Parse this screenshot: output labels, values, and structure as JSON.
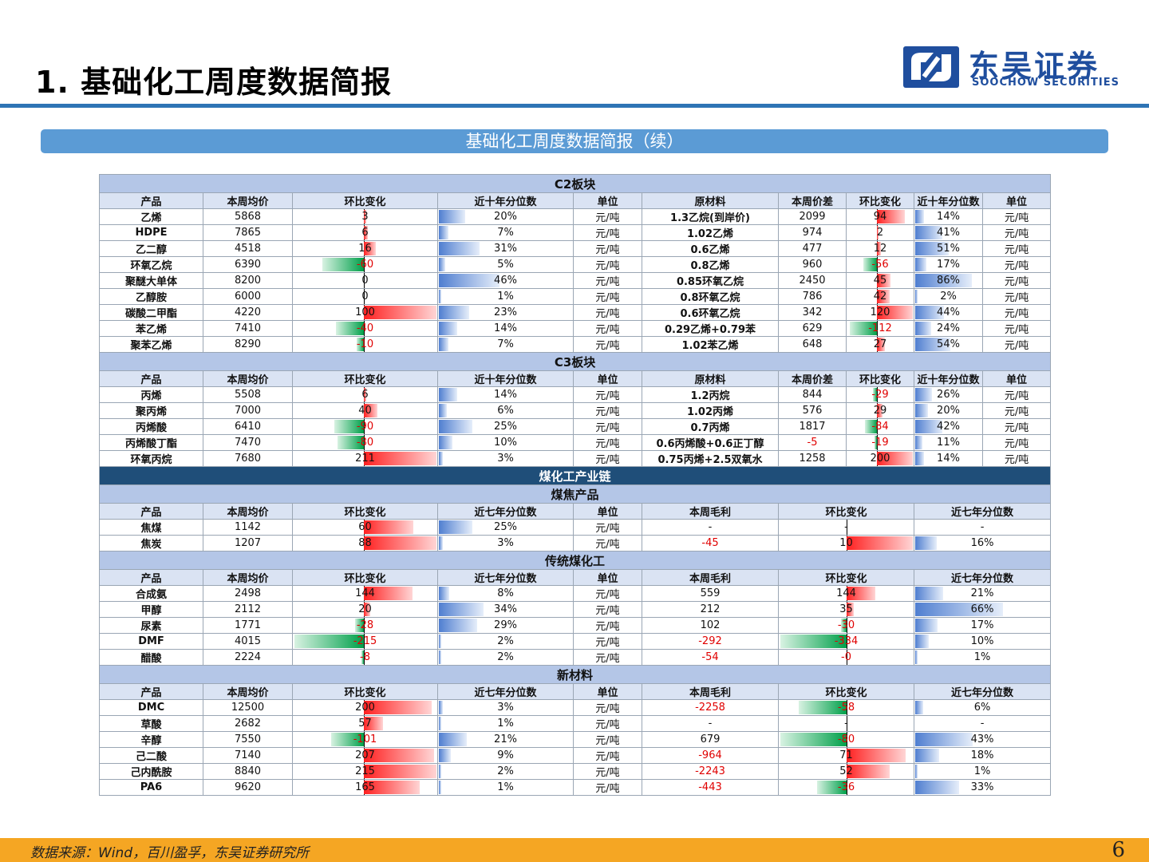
{
  "header": {
    "title": "1. 基础化工周度数据简报"
  },
  "logo": {
    "cn": "东吴证券",
    "en": "SOOCHOW SECURITIES"
  },
  "subtitle": "基础化工周度数据简报（续）",
  "colors": {
    "accent": "#2e74b5",
    "bar_up": "#ff2020",
    "bar_down": "#00a04a",
    "bar_pct": "#4f7ed0",
    "footer": "#f5a623"
  },
  "sections": [
    {
      "title": "C2板块",
      "kind": "c",
      "headers": [
        "产品",
        "本周均价",
        "环比变化",
        "近十年分位数",
        "单位",
        "原材料",
        "本周价差",
        "环比变化",
        "近十年分位数",
        "单位"
      ],
      "rows": [
        [
          "乙烯",
          "5868",
          "3",
          "20%",
          "元/吨",
          "1.3乙烷(到岸价)",
          "2099",
          "94",
          "14%",
          "元/吨"
        ],
        [
          "HDPE",
          "7865",
          "6",
          "7%",
          "元/吨",
          "1.02乙烯",
          "974",
          "2",
          "41%",
          "元/吨"
        ],
        [
          "乙二醇",
          "4518",
          "16",
          "31%",
          "元/吨",
          "0.6乙烯",
          "477",
          "12",
          "51%",
          "元/吨"
        ],
        [
          "环氧乙烷",
          "6390",
          "-60",
          "5%",
          "元/吨",
          "0.8乙烯",
          "960",
          "-56",
          "17%",
          "元/吨"
        ],
        [
          "聚醚大单体",
          "8200",
          "0",
          "46%",
          "元/吨",
          "0.85环氧乙烷",
          "2450",
          "45",
          "86%",
          "元/吨"
        ],
        [
          "乙醇胺",
          "6000",
          "0",
          "1%",
          "元/吨",
          "0.8环氧乙烷",
          "786",
          "42",
          "2%",
          "元/吨"
        ],
        [
          "碳酸二甲酯",
          "4220",
          "100",
          "23%",
          "元/吨",
          "0.6环氧乙烷",
          "342",
          "120",
          "44%",
          "元/吨"
        ],
        [
          "苯乙烯",
          "7410",
          "-40",
          "14%",
          "元/吨",
          "0.29乙烯+0.79苯",
          "629",
          "-112",
          "24%",
          "元/吨"
        ],
        [
          "聚苯乙烯",
          "8290",
          "-10",
          "7%",
          "元/吨",
          "1.02苯乙烯",
          "648",
          "27",
          "54%",
          "元/吨"
        ]
      ]
    },
    {
      "title": "C3板块",
      "kind": "c",
      "headers": [
        "产品",
        "本周均价",
        "环比变化",
        "近十年分位数",
        "单位",
        "原材料",
        "本周价差",
        "环比变化",
        "近十年分位数",
        "单位"
      ],
      "rows": [
        [
          "丙烯",
          "5508",
          "6",
          "14%",
          "元/吨",
          "1.2丙烷",
          "844",
          "-29",
          "26%",
          "元/吨"
        ],
        [
          "聚丙烯",
          "7000",
          "40",
          "6%",
          "元/吨",
          "1.02丙烯",
          "576",
          "29",
          "20%",
          "元/吨"
        ],
        [
          "丙烯酸",
          "6410",
          "-90",
          "25%",
          "元/吨",
          "0.7丙烯",
          "1817",
          "-84",
          "42%",
          "元/吨"
        ],
        [
          "丙烯酸丁酯",
          "7470",
          "-80",
          "10%",
          "元/吨",
          "0.6丙烯酸+0.6正丁醇",
          "-5",
          "-19",
          "11%",
          "元/吨"
        ],
        [
          "环氧丙烷",
          "7680",
          "211",
          "3%",
          "元/吨",
          "0.75丙烯+2.5双氧水",
          "1258",
          "200",
          "14%",
          "元/吨"
        ]
      ]
    },
    {
      "title": "煤化工产业链",
      "kind": "banner"
    },
    {
      "title": "煤焦产品",
      "kind": "m",
      "headers": [
        "产品",
        "本周均价",
        "环比变化",
        "近七年分位数",
        "单位",
        "本周毛利",
        "环比变化",
        "近七年分位数",
        "单位"
      ],
      "rows": [
        [
          "焦煤",
          "1142",
          "60",
          "25%",
          "元/吨",
          "-",
          "-",
          "-",
          "元/吨"
        ],
        [
          "焦炭",
          "1207",
          "88",
          "3%",
          "元/吨",
          "-45",
          "10",
          "16%",
          "元/吨"
        ]
      ]
    },
    {
      "title": "传统煤化工",
      "kind": "m",
      "headers": [
        "产品",
        "本周均价",
        "环比变化",
        "近七年分位数",
        "单位",
        "本周毛利",
        "环比变化",
        "近七年分位数",
        "单位"
      ],
      "rows": [
        [
          "合成氨",
          "2498",
          "144",
          "8%",
          "元/吨",
          "559",
          "144",
          "21%",
          "元/吨"
        ],
        [
          "甲醇",
          "2112",
          "20",
          "34%",
          "元/吨",
          "212",
          "35",
          "66%",
          "元/吨"
        ],
        [
          "尿素",
          "1771",
          "-28",
          "29%",
          "元/吨",
          "102",
          "-30",
          "17%",
          "元/吨"
        ],
        [
          "DMF",
          "4015",
          "-215",
          "2%",
          "元/吨",
          "-292",
          "-334",
          "10%",
          "元/吨"
        ],
        [
          "醋酸",
          "2224",
          "-8",
          "2%",
          "元/吨",
          "-54",
          "-0",
          "1%",
          "元/吨"
        ]
      ]
    },
    {
      "title": "新材料",
      "kind": "m",
      "headers": [
        "产品",
        "本周均价",
        "环比变化",
        "近七年分位数",
        "单位",
        "本周毛利",
        "环比变化",
        "近七年分位数",
        "单位"
      ],
      "rows": [
        [
          "DMC",
          "12500",
          "200",
          "3%",
          "元/吨",
          "-2258",
          "-58",
          "6%",
          "元/吨"
        ],
        [
          "草酸",
          "2682",
          "57",
          "1%",
          "元/吨",
          "-",
          "-",
          "-",
          "元/吨"
        ],
        [
          "辛醇",
          "7550",
          "-101",
          "21%",
          "元/吨",
          "679",
          "-80",
          "43%",
          "元/吨"
        ],
        [
          "己二酸",
          "7140",
          "207",
          "9%",
          "元/吨",
          "-964",
          "71",
          "18%",
          "元/吨"
        ],
        [
          "己内酰胺",
          "8840",
          "215",
          "2%",
          "元/吨",
          "-2243",
          "52",
          "1%",
          "元/吨"
        ],
        [
          "PA6",
          "9620",
          "165",
          "1%",
          "元/吨",
          "-443",
          "-36",
          "33%",
          "元/吨"
        ]
      ]
    }
  ],
  "footer": {
    "source": "数据来源：Wind，百川盈孚，东吴证券研究所",
    "page": "6"
  }
}
